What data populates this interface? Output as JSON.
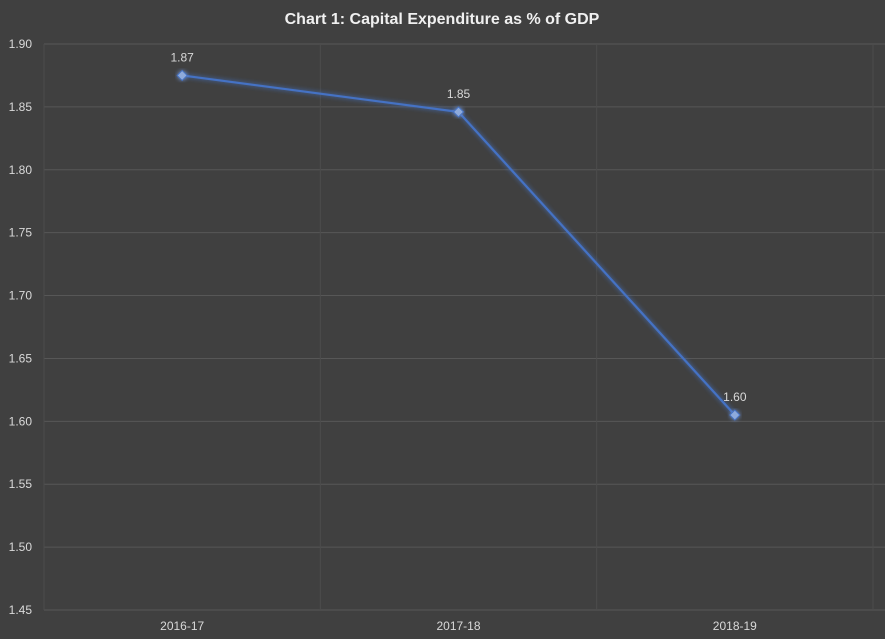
{
  "chart_data": {
    "type": "line",
    "title": "Chart 1: Capital Expenditure as % of GDP",
    "xlabel": "",
    "ylabel": "",
    "categories": [
      "2016-17",
      "2017-18",
      "2018-19"
    ],
    "series": [
      {
        "values": [
          1.875,
          1.846,
          1.605
        ],
        "data_labels": [
          "1.87",
          "1.85",
          "1.60"
        ],
        "color": "#4472c4",
        "marker": "diamond"
      }
    ],
    "ylim": [
      1.45,
      1.9
    ],
    "yticks": [
      "1.45",
      "1.50",
      "1.55",
      "1.60",
      "1.65",
      "1.70",
      "1.75",
      "1.80",
      "1.85",
      "1.90"
    ],
    "grid": true,
    "legend": "none",
    "background": "#404040"
  }
}
